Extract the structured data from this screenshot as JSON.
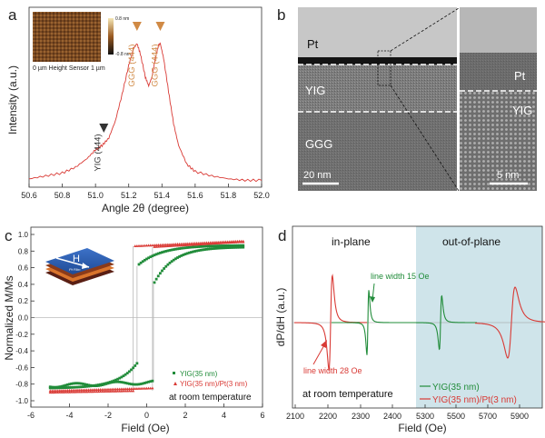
{
  "colors": {
    "red": "#d93a35",
    "green": "#218c3a",
    "orange": "#d08a45",
    "axis": "#222222",
    "oop_bg": "#cfe4ea",
    "grey_curve": "#b8b8b8"
  },
  "panel_a": {
    "letter": "a",
    "inset_scale_max": "0.8 nm",
    "inset_scale_min": "-0.8 nm",
    "inset_caption": "0 µm  Height Sensor 1 µm",
    "peaks": [
      {
        "label": "GGG (444)",
        "x": 51.25,
        "color": "orange"
      },
      {
        "label": "GGG (444)",
        "x": 51.39,
        "color": "orange"
      },
      {
        "label": "YIG (444)",
        "x": 51.05,
        "color": "dark"
      }
    ]
  },
  "panel_b": {
    "letter": "b",
    "labels": {
      "pt": "Pt",
      "yig": "YIG",
      "ggg": "GGG",
      "pt_zoom": "Pt",
      "yig_zoom": "YIG"
    },
    "scalebar_left": "20 nm",
    "scalebar_right": "5 nm"
  },
  "panel_c": {
    "letter": "c",
    "annotation": "at room temperature",
    "inset_h": "H",
    "inset_film": "Pt Film"
  },
  "panel_d": {
    "letter": "d",
    "region_in": "in-plane",
    "region_oop": "out-of-plane",
    "lw_green": "line width 15 Oe",
    "lw_red": "line width 28 Oe",
    "annotation": "at room temperature"
  },
  "chart_data": [
    {
      "panel": "a",
      "type": "line",
      "xlabel": "Angle 2θ (degree)",
      "ylabel": "Intensity (a.u.)",
      "xlim": [
        50.6,
        52.0
      ],
      "xticks": [
        "50.6",
        "50.8",
        "51.0",
        "51.2",
        "51.4",
        "51.6",
        "51.8",
        "52.0"
      ],
      "series": [
        {
          "color": "red",
          "x": [
            50.6,
            50.7,
            50.8,
            50.88,
            50.95,
            51.0,
            51.04,
            51.08,
            51.12,
            51.16,
            51.2,
            51.23,
            51.25,
            51.27,
            51.3,
            51.32,
            51.34,
            51.36,
            51.38,
            51.39,
            51.41,
            51.44,
            51.47,
            51.5,
            51.55,
            51.6,
            51.7,
            51.8,
            51.9,
            52.0
          ],
          "y": [
            0.02,
            0.04,
            0.06,
            0.1,
            0.16,
            0.22,
            0.25,
            0.3,
            0.42,
            0.6,
            0.8,
            0.92,
            0.95,
            0.88,
            0.72,
            0.66,
            0.72,
            0.85,
            0.94,
            0.95,
            0.85,
            0.62,
            0.4,
            0.25,
            0.12,
            0.07,
            0.04,
            0.02,
            0.01,
            0.01
          ]
        }
      ]
    },
    {
      "panel": "c",
      "type": "scatter",
      "xlabel": "Field (Oe)",
      "ylabel": "Normalized M/Ms",
      "xlim": [
        -6,
        6
      ],
      "ylim": [
        -1.05,
        1.05
      ],
      "xticks": [
        "-6",
        "-4",
        "-2",
        "0",
        "2",
        "4",
        "6"
      ],
      "yticks": [
        "-1.0",
        "-0.8",
        "-0.6",
        "-0.4",
        "-0.2",
        "0.0",
        "0.2",
        "0.4",
        "0.6",
        "0.8",
        "1.0"
      ],
      "series": [
        {
          "name": "YIG(35 nm)",
          "color": "green",
          "marker": "square"
        },
        {
          "name": "YIG(35 nm)/Pt(3 nm)",
          "color": "red",
          "marker": "triangle"
        }
      ]
    },
    {
      "panel": "d",
      "type": "line",
      "xlabel": "Field (Oe)",
      "ylabel": "dP/dH (a.u.)",
      "xticks": [
        "2100",
        "2200",
        "2300",
        "2400",
        "5300",
        "5500",
        "5700",
        "5900"
      ],
      "series": [
        {
          "name": "YIG(35 nm)",
          "color": "green"
        },
        {
          "name": "YIG(35 nm)/Pt(3 nm)",
          "color": "red"
        }
      ]
    }
  ]
}
